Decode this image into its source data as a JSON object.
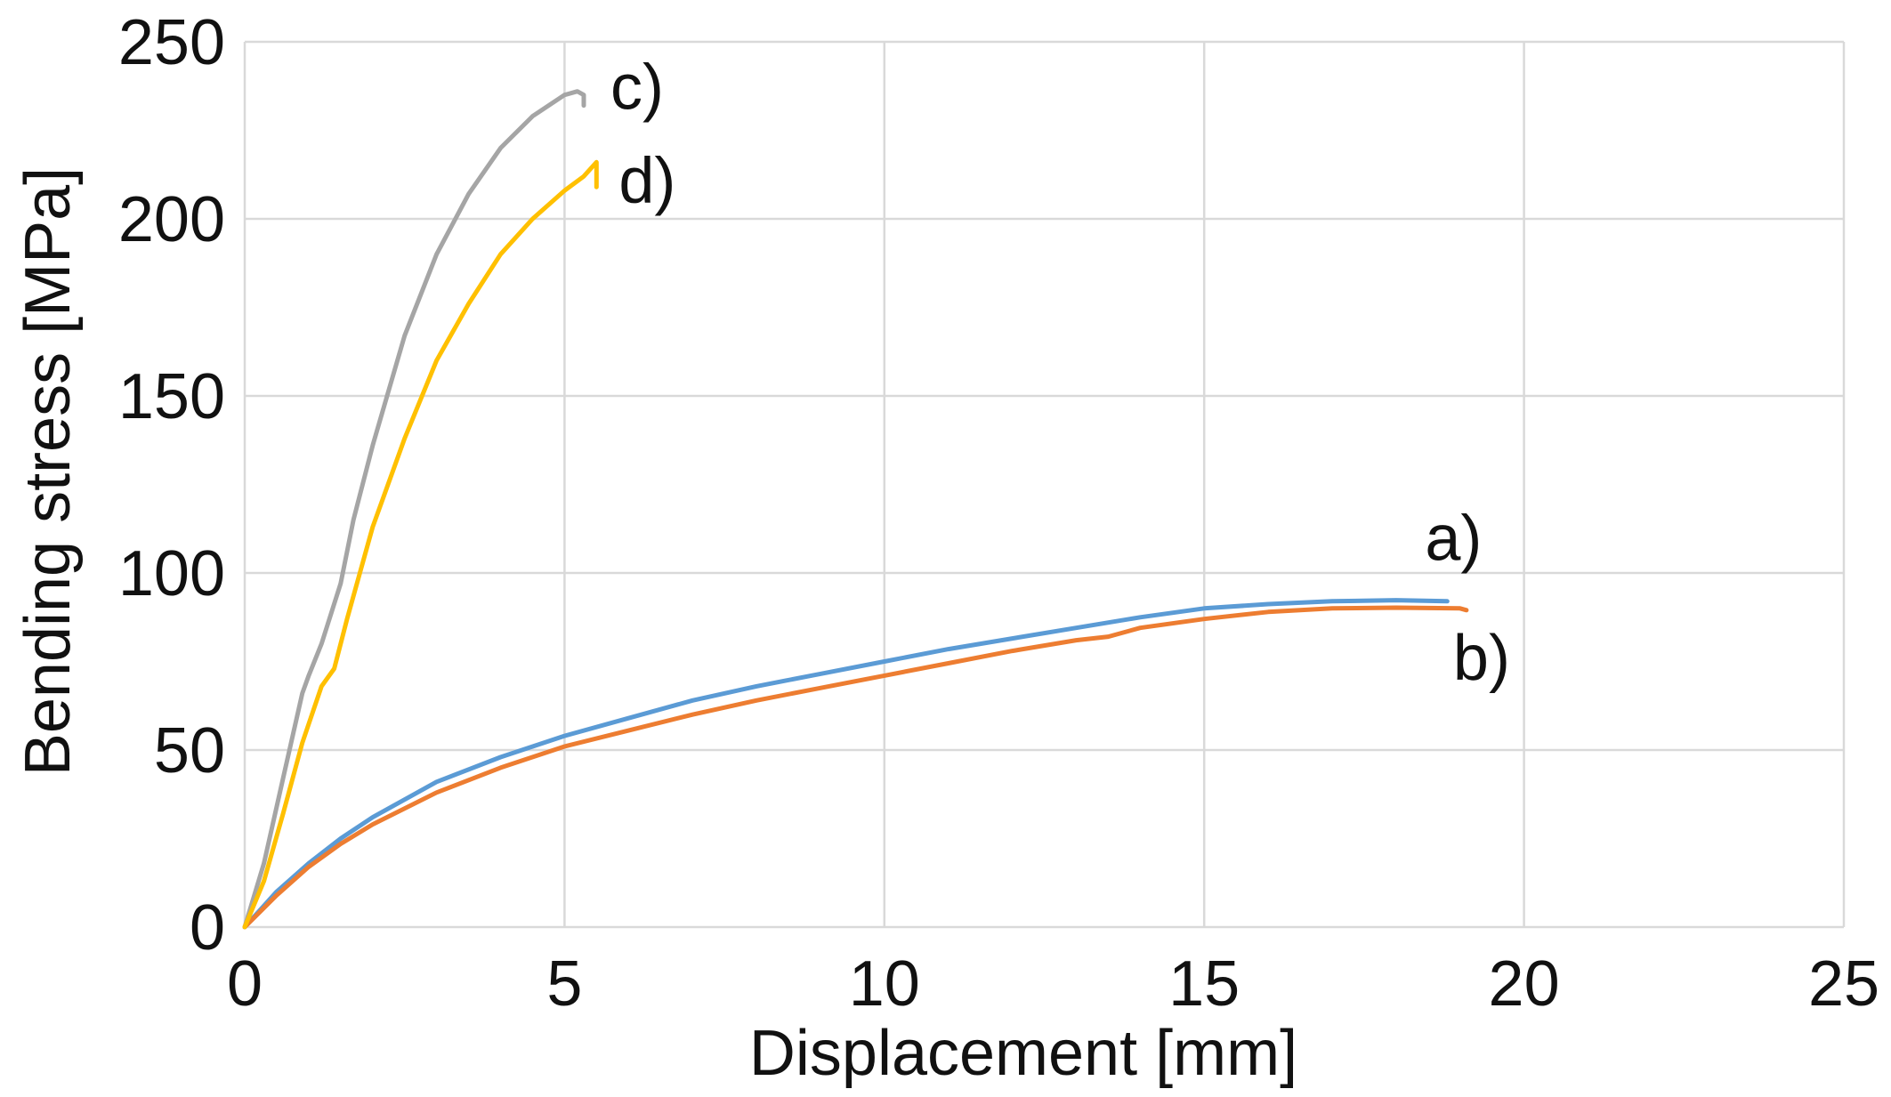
{
  "chart_data": {
    "type": "line",
    "title": "",
    "xlabel": "Displacement [mm]",
    "ylabel": "Bending stress [MPa]",
    "xlim": [
      0,
      25
    ],
    "ylim": [
      0,
      250
    ],
    "x_ticks": [
      0,
      5,
      10,
      15,
      20,
      25
    ],
    "y_ticks": [
      0,
      50,
      100,
      150,
      200,
      250
    ],
    "x_tick_labels": [
      "0",
      "5",
      "10",
      "15",
      "20",
      "25"
    ],
    "y_tick_labels": [
      "0",
      "50",
      "100",
      "150",
      "200",
      "250"
    ],
    "grid": true,
    "legend": "inline labels at curve ends",
    "series": [
      {
        "name": "a)",
        "label": "a)",
        "color": "#5b9bd5",
        "x": [
          0,
          0.5,
          1,
          1.5,
          2,
          3,
          4,
          5,
          6,
          7,
          8,
          9,
          10,
          11,
          12,
          13,
          14,
          15,
          16,
          17,
          18,
          18.8
        ],
        "y": [
          0,
          10,
          18,
          25,
          31,
          41,
          48,
          54,
          59,
          64,
          68,
          71.5,
          75,
          78.5,
          81.5,
          84.5,
          87.5,
          90,
          91.2,
          92,
          92.3,
          92
        ]
      },
      {
        "name": "b)",
        "label": "b)",
        "color": "#ed7d31",
        "x": [
          0,
          0.5,
          1,
          1.5,
          2,
          3,
          4,
          5,
          6,
          7,
          8,
          9,
          10,
          11,
          12,
          13,
          13.5,
          14,
          15,
          16,
          17,
          18,
          19,
          19.1
        ],
        "y": [
          0,
          9,
          17,
          23.5,
          29,
          38,
          45,
          51,
          55.5,
          60,
          64,
          67.5,
          71,
          74.5,
          78,
          81,
          82,
          84.5,
          87,
          89,
          90,
          90.2,
          90,
          89.5
        ]
      },
      {
        "name": "c)",
        "label": "c)",
        "color": "#a5a5a5",
        "x": [
          0,
          0.3,
          0.6,
          0.9,
          1.0,
          1.2,
          1.5,
          1.7,
          2.0,
          2.5,
          3.0,
          3.5,
          4.0,
          4.5,
          5.0,
          5.2,
          5.3,
          5.3
        ],
        "y": [
          0,
          18,
          42,
          66,
          71,
          80,
          97,
          115,
          136,
          167,
          190,
          207,
          220,
          229,
          235,
          236,
          235,
          232
        ]
      },
      {
        "name": "d)",
        "label": "d)",
        "color": "#ffc000",
        "x": [
          0,
          0.3,
          0.6,
          0.9,
          1.2,
          1.4,
          1.6,
          1.8,
          2.0,
          2.5,
          3.0,
          3.5,
          4.0,
          4.5,
          5.0,
          5.3,
          5.5,
          5.5,
          5.5
        ],
        "y": [
          0,
          13,
          32,
          52,
          68,
          73,
          87,
          100,
          113,
          138,
          160,
          176,
          190,
          200,
          208,
          212,
          216,
          213,
          209
        ]
      }
    ]
  }
}
